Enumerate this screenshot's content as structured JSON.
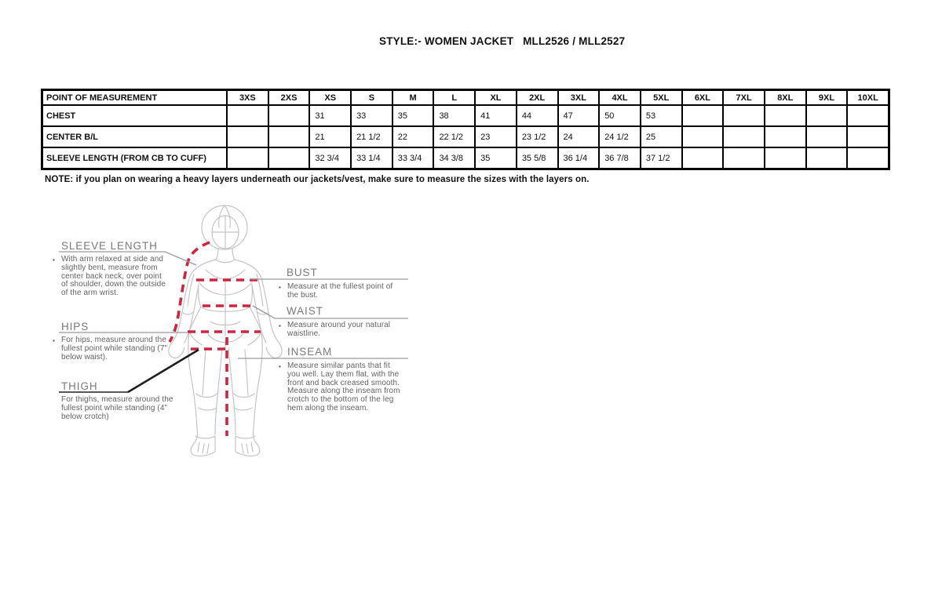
{
  "title": "STYLE:- WOMEN JACKET   MLL2526 / MLL2527",
  "note": "NOTE: if you plan on wearing a heavy layers underneath our jackets/vest, make sure to measure the sizes with the layers on.",
  "size_table": {
    "header": [
      "POINT OF MEASUREMENT",
      "3XS",
      "2XS",
      "XS",
      "S",
      "M",
      "L",
      "XL",
      "2XL",
      "3XL",
      "4XL",
      "5XL",
      "6XL",
      "7XL",
      "8XL",
      "9XL",
      "10XL"
    ],
    "rows": [
      {
        "label": "CHEST",
        "values": [
          "",
          "",
          "31",
          "33",
          "35",
          "38",
          "41",
          "44",
          "47",
          "50",
          "53",
          "",
          "",
          "",
          "",
          ""
        ]
      },
      {
        "label": "CENTER B/L",
        "values": [
          "",
          "",
          "21",
          "21 1/2",
          "22",
          "22 1/2",
          "23",
          "23 1/2",
          "24",
          "24 1/2",
          "25",
          "",
          "",
          "",
          "",
          ""
        ]
      },
      {
        "label": "SLEEVE LENGTH (FROM CB TO CUFF)",
        "values": [
          "",
          "",
          "32 3/4",
          "33 1/4",
          "33 3/4",
          "34 3/8",
          "35",
          "35 5/8",
          "36 1/4",
          "36 7/8",
          "37 1/2",
          "",
          "",
          "",
          "",
          ""
        ]
      }
    ]
  },
  "measurements": {
    "sleeve_length": {
      "heading": "SLEEVE LENGTH",
      "description": "With arm relaxed at side and slightly bent, measure from center back neck, over point of shoulder, down the outside of the arm wrist."
    },
    "hips": {
      "heading": "HIPS",
      "description": "For hips, measure around the fullest point while standing (7\" below waist)."
    },
    "thigh": {
      "heading": "THIGH",
      "description": "For thighs, measure around the fullest point while standing (4\" below crotch)"
    },
    "bust": {
      "heading": "BUST",
      "description": "Measure at the fullest point of the bust."
    },
    "waist": {
      "heading": "WAIST",
      "description": "Measure around your natural waistline."
    },
    "inseam": {
      "heading": "INSEAM",
      "description": "Measure similar pants that fit you well. Lay them flat, with the front and back creased smooth. Measure along the inseam from crotch to the bottom of the leg hem along the inseam."
    }
  },
  "colors": {
    "measure_dash_line": "#cf2440",
    "figure_outline": "#c5c5c5",
    "label_text": "#636363",
    "table_border": "#000000"
  }
}
